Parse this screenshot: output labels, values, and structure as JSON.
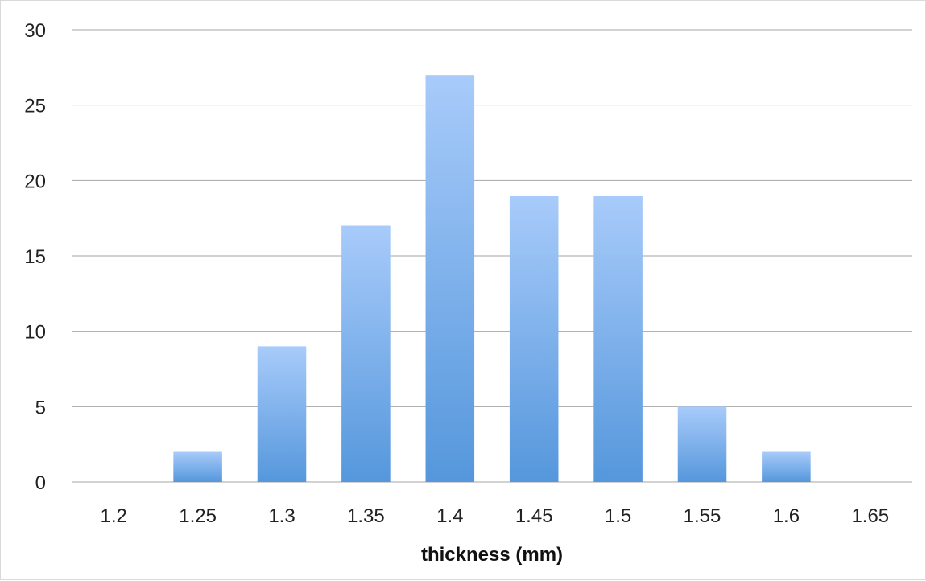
{
  "chart_data": {
    "type": "bar",
    "title": "",
    "xlabel": "thickness (mm)",
    "ylabel": "",
    "categories": [
      "1.2",
      "1.25",
      "1.3",
      "1.35",
      "1.4",
      "1.45",
      "1.5",
      "1.55",
      "1.6",
      "1.65"
    ],
    "values": [
      0,
      2,
      9,
      17,
      27,
      19,
      19,
      5,
      2,
      0
    ],
    "ylim": [
      0,
      30
    ],
    "yticks": [
      "0",
      "5",
      "10",
      "15",
      "20",
      "25",
      "30"
    ],
    "grid": true,
    "legend": "none",
    "colors": {
      "bar_top": "#a8cbfa",
      "bar_bottom": "#5597dc",
      "grid": "#a6a6a6"
    }
  }
}
